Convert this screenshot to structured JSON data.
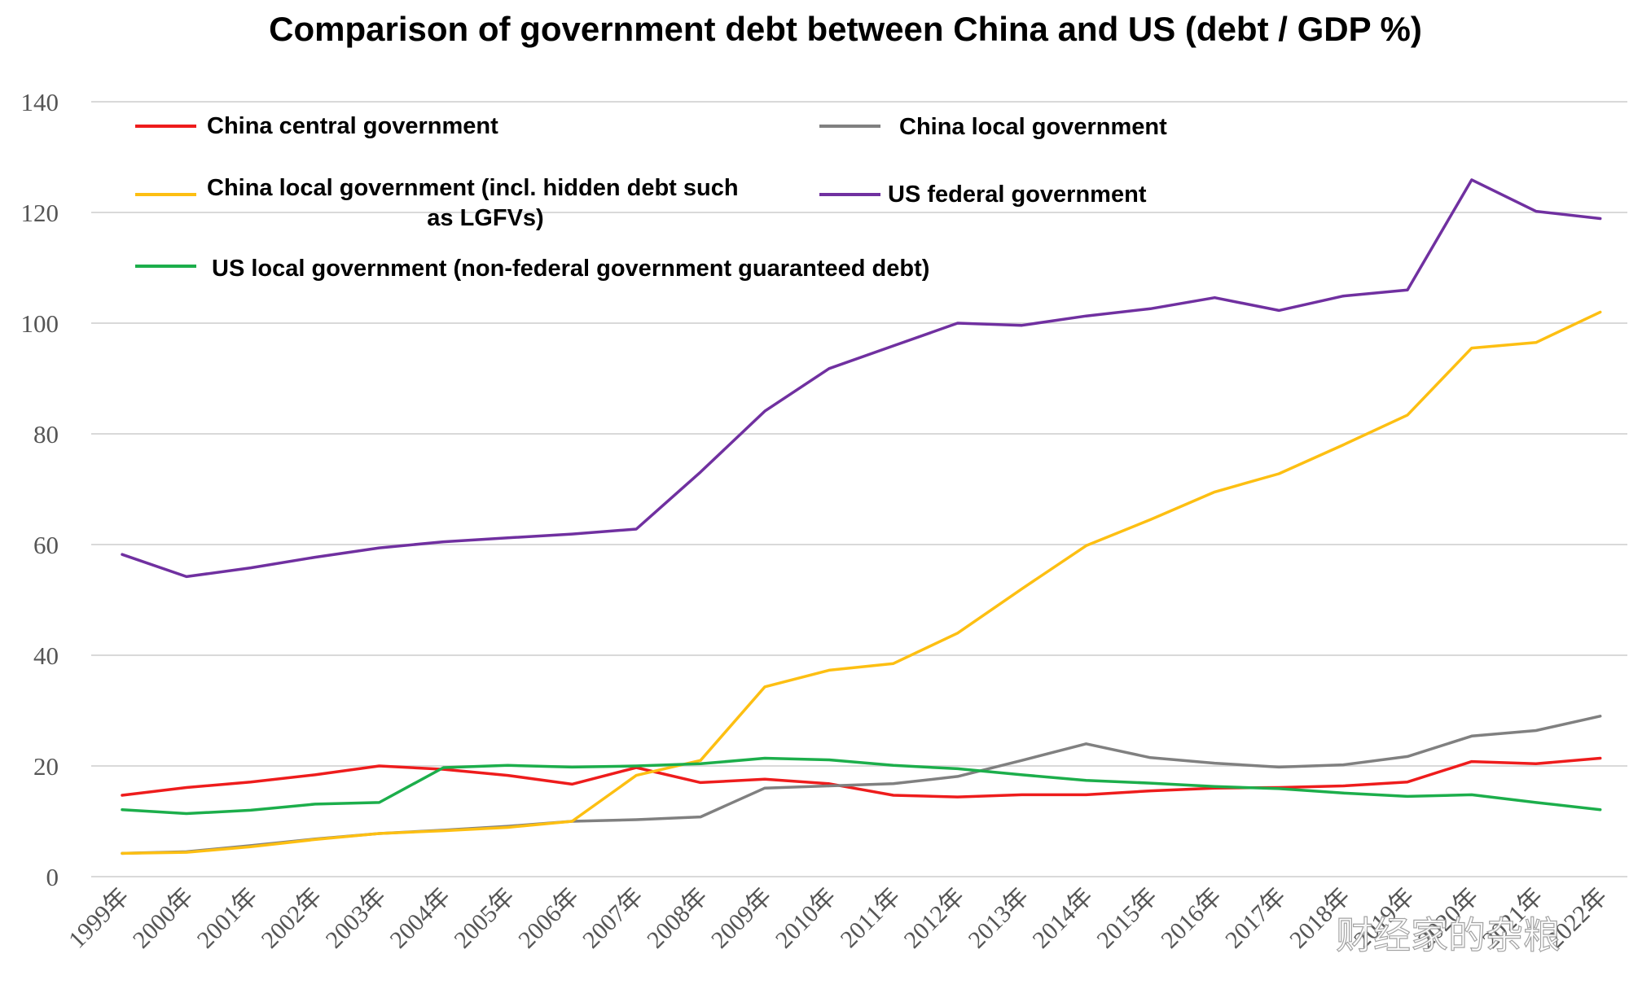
{
  "watermark": "财经家的杂粮",
  "chart_data": {
    "type": "line",
    "title": "Comparison of government debt between China and US (debt / GDP %)",
    "xlabel": "",
    "ylabel": "",
    "ylim": [
      0,
      140
    ],
    "yticks": [
      0,
      20,
      40,
      60,
      80,
      100,
      120,
      140
    ],
    "grid": true,
    "legend_position": "top-left",
    "categories": [
      "1999年",
      "2000年",
      "2001年",
      "2002年",
      "2003年",
      "2004年",
      "2005年",
      "2006年",
      "2007年",
      "2008年",
      "2009年",
      "2010年",
      "2011年",
      "2012年",
      "2013年",
      "2014年",
      "2015年",
      "2016年",
      "2017年",
      "2018年",
      "2019年",
      "2020年",
      "2021年",
      "2022年"
    ],
    "series": [
      {
        "name": "China central government",
        "color": "#ee1c1c",
        "values": [
          14.7,
          16.1,
          17.1,
          18.4,
          20.0,
          19.4,
          18.3,
          16.7,
          19.7,
          17.0,
          17.6,
          16.8,
          14.7,
          14.4,
          14.8,
          14.8,
          15.5,
          16.0,
          16.1,
          16.4,
          17.1,
          20.8,
          20.4,
          21.4
        ]
      },
      {
        "name": "China local government",
        "color": "#808080",
        "values": [
          4.2,
          4.5,
          5.6,
          6.8,
          7.8,
          8.4,
          9.1,
          10.0,
          10.3,
          10.8,
          16.0,
          16.4,
          16.8,
          18.1,
          21.0,
          24.0,
          21.5,
          20.5,
          19.8,
          20.2,
          21.7,
          25.4,
          26.4,
          29.0
        ]
      },
      {
        "name": "China local government (incl. hidden debt such as LGFVs)",
        "color": "#fdbf12",
        "values": [
          4.2,
          4.4,
          5.4,
          6.7,
          7.8,
          8.3,
          8.9,
          10.0,
          18.3,
          21.0,
          34.3,
          37.3,
          38.5,
          44.0,
          52.0,
          59.8,
          64.5,
          69.5,
          72.8,
          78.0,
          83.4,
          95.5,
          96.5,
          102.0
        ]
      },
      {
        "name": "US federal government",
        "color": "#7030a0",
        "values": [
          58.2,
          54.2,
          55.8,
          57.7,
          59.4,
          60.5,
          61.2,
          61.9,
          62.8,
          73.1,
          84.1,
          91.8,
          95.9,
          100.0,
          99.6,
          101.3,
          102.6,
          104.6,
          102.3,
          104.9,
          106.0,
          125.9,
          120.2,
          118.9
        ]
      },
      {
        "name": "US local government (non-federal government guaranteed debt)",
        "color": "#1cae4b",
        "values": [
          12.1,
          11.4,
          12.0,
          13.1,
          13.4,
          19.7,
          20.1,
          19.8,
          20.0,
          20.4,
          21.4,
          21.1,
          20.1,
          19.5,
          18.4,
          17.4,
          16.9,
          16.3,
          15.9,
          15.1,
          14.5,
          14.8,
          13.4,
          12.1
        ]
      }
    ]
  }
}
